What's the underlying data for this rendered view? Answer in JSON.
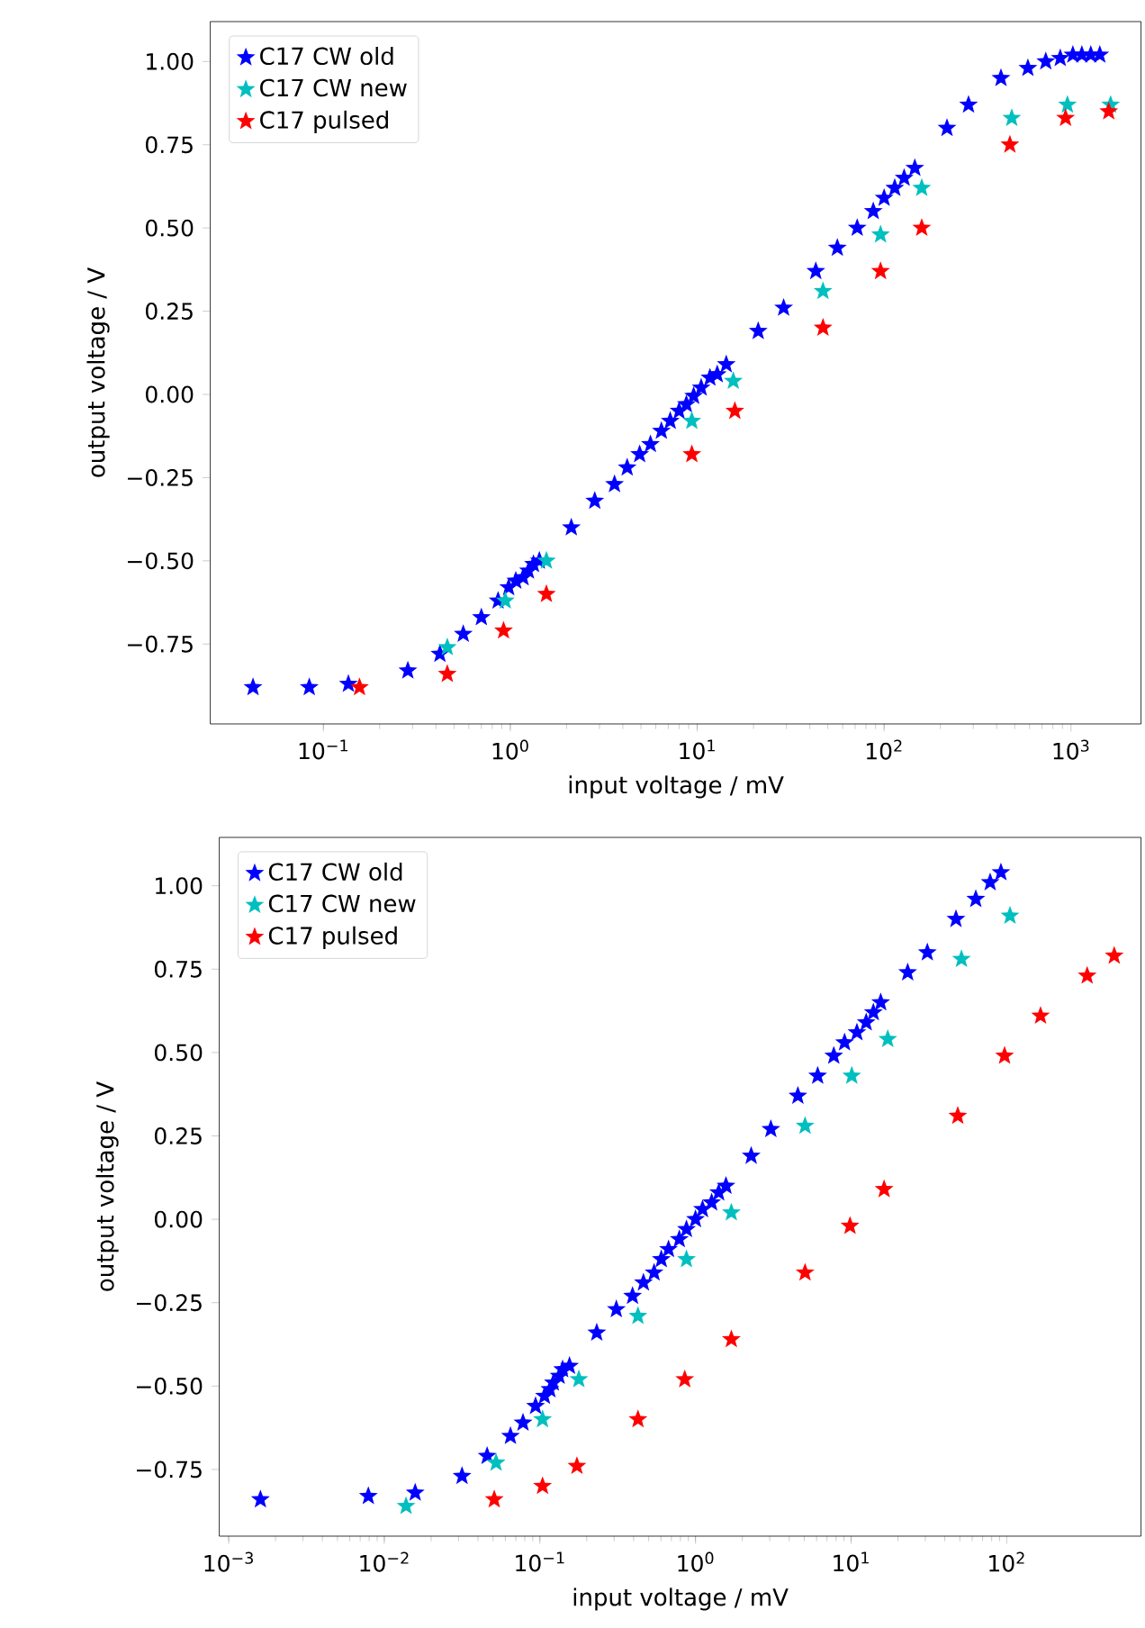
{
  "chart_data": [
    {
      "type": "scatter",
      "xlabel": "input voltage / mV",
      "ylabel": "output voltage / V",
      "log": "x",
      "marker": "star",
      "legend": "top left",
      "grid": false,
      "xlim": [
        0.0248,
        2370
      ],
      "ylim": [
        -0.99,
        1.12
      ],
      "xticks": [
        {
          "value": 0.1,
          "label": "10$^{−1}$"
        },
        {
          "value": 1,
          "label": "10$^{0}$"
        },
        {
          "value": 10,
          "label": "10$^{1}$"
        },
        {
          "value": 100,
          "label": "10$^{2}$"
        },
        {
          "value": 1000,
          "label": "10$^{3}$"
        }
      ],
      "yticks": [
        {
          "value": -0.75,
          "label": "−0.75"
        },
        {
          "value": -0.5,
          "label": "−0.50"
        },
        {
          "value": -0.25,
          "label": "−0.25"
        },
        {
          "value": 0,
          "label": "0.00"
        },
        {
          "value": 0.25,
          "label": "0.25"
        },
        {
          "value": 0.5,
          "label": "0.50"
        },
        {
          "value": 0.75,
          "label": "0.75"
        },
        {
          "value": 1,
          "label": "1.00"
        }
      ],
      "series": [
        {
          "name": "C17 CW old",
          "color": "#0000ff",
          "x": [
            0.042,
            0.084,
            0.136,
            0.283,
            0.42,
            0.56,
            0.7,
            0.86,
            0.98,
            1.07,
            1.17,
            1.25,
            1.33,
            1.43,
            2.12,
            2.83,
            3.61,
            4.22,
            4.92,
            5.62,
            6.43,
            7.17,
            8.0,
            8.75,
            9.57,
            10.5,
            11.7,
            12.8,
            14.3,
            21.2,
            29.0,
            43.1,
            56.2,
            71.8,
            87.5,
            100,
            114,
            128,
            146,
            217,
            283,
            422,
            588,
            733,
            876,
            1023,
            1143,
            1276,
            1426
          ],
          "values": [
            -0.88,
            -0.88,
            -0.87,
            -0.83,
            -0.78,
            -0.72,
            -0.67,
            -0.62,
            -0.58,
            -0.56,
            -0.55,
            -0.53,
            -0.51,
            -0.5,
            -0.4,
            -0.32,
            -0.27,
            -0.22,
            -0.18,
            -0.15,
            -0.11,
            -0.08,
            -0.05,
            -0.03,
            -0.005,
            0.02,
            0.05,
            0.06,
            0.09,
            0.19,
            0.26,
            0.37,
            0.44,
            0.5,
            0.55,
            0.59,
            0.62,
            0.65,
            0.68,
            0.8,
            0.87,
            0.95,
            0.98,
            1.0,
            1.01,
            1.02,
            1.02,
            1.02,
            1.02
          ]
        },
        {
          "name": "C17 CW new",
          "color": "#00bfbf",
          "x": [
            0.46,
            0.94,
            1.56,
            9.36,
            15.6,
            47.1,
            95.7,
            159,
            482,
            957,
            1629
          ],
          "values": [
            -0.76,
            -0.62,
            -0.5,
            -0.08,
            0.04,
            0.31,
            0.48,
            0.62,
            0.83,
            0.87,
            0.87
          ]
        },
        {
          "name": "C17 pulsed",
          "color": "#ff0000",
          "x": [
            0.156,
            0.46,
            0.92,
            1.56,
            9.36,
            15.9,
            47.1,
            95.7,
            159,
            471,
            935,
            1592
          ],
          "values": [
            -0.88,
            -0.84,
            -0.71,
            -0.6,
            -0.18,
            -0.05,
            0.2,
            0.37,
            0.5,
            0.75,
            0.83,
            0.85
          ]
        }
      ]
    },
    {
      "type": "scatter",
      "xlabel": "input voltage / mV",
      "ylabel": "output voltage / V",
      "log": "x",
      "marker": "star",
      "legend": "top left",
      "grid": false,
      "xlim": [
        0.00087,
        730
      ],
      "ylim": [
        -0.95,
        1.145
      ],
      "xticks": [
        {
          "value": 0.001,
          "label": "10$^{−3}$"
        },
        {
          "value": 0.01,
          "label": "10$^{−2}$"
        },
        {
          "value": 0.1,
          "label": "10$^{−1}$"
        },
        {
          "value": 1,
          "label": "10$^{0}$"
        },
        {
          "value": 10,
          "label": "10$^{1}$"
        },
        {
          "value": 100,
          "label": "10$^{2}$"
        }
      ],
      "yticks": [
        {
          "value": -0.75,
          "label": "−0.75"
        },
        {
          "value": -0.5,
          "label": "−0.50"
        },
        {
          "value": -0.25,
          "label": "−0.25"
        },
        {
          "value": 0,
          "label": "0.00"
        },
        {
          "value": 0.25,
          "label": "0.25"
        },
        {
          "value": 0.5,
          "label": "0.50"
        },
        {
          "value": 0.75,
          "label": "0.75"
        },
        {
          "value": 1,
          "label": "1.00"
        }
      ],
      "series": [
        {
          "name": "C17 CW old",
          "color": "#0000ff",
          "x": [
            0.0016,
            0.0079,
            0.0158,
            0.0316,
            0.0458,
            0.0647,
            0.0779,
            0.0938,
            0.107,
            0.116,
            0.122,
            0.133,
            0.14,
            0.155,
            0.232,
            0.31,
            0.394,
            0.463,
            0.542,
            0.603,
            0.671,
            0.787,
            0.875,
            1.0,
            1.11,
            1.27,
            1.41,
            1.57,
            2.28,
            3.05,
            4.55,
            6.1,
            7.74,
            9.08,
            10.9,
            12.5,
            13.9,
            15.5,
            23.1,
            30.9,
            47.2,
            63.3,
            78.3,
            91.8
          ],
          "values": [
            -0.84,
            -0.83,
            -0.82,
            -0.77,
            -0.71,
            -0.65,
            -0.61,
            -0.56,
            -0.53,
            -0.51,
            -0.49,
            -0.47,
            -0.45,
            -0.44,
            -0.34,
            -0.27,
            -0.23,
            -0.19,
            -0.16,
            -0.12,
            -0.09,
            -0.06,
            -0.03,
            0.0,
            0.03,
            0.05,
            0.08,
            0.1,
            0.19,
            0.27,
            0.37,
            0.43,
            0.49,
            0.53,
            0.56,
            0.59,
            0.62,
            0.65,
            0.74,
            0.8,
            0.9,
            0.96,
            1.01,
            1.04
          ]
        },
        {
          "name": "C17 CW new",
          "color": "#00bfbf",
          "x": [
            0.0138,
            0.0523,
            0.104,
            0.178,
            0.427,
            0.875,
            1.7,
            5.06,
            10.1,
            17.2,
            51.2,
            105
          ],
          "values": [
            -0.86,
            -0.73,
            -0.6,
            -0.48,
            -0.29,
            -0.12,
            0.02,
            0.28,
            0.43,
            0.54,
            0.78,
            0.91
          ]
        },
        {
          "name": "C17 pulsed",
          "color": "#ff0000",
          "x": [
            0.0509,
            0.104,
            0.173,
            0.427,
            0.853,
            1.7,
            5.06,
            9.84,
            16.3,
            48.5,
            96.9,
            165,
            329,
            491
          ],
          "values": [
            -0.84,
            -0.8,
            -0.74,
            -0.6,
            -0.48,
            -0.36,
            -0.16,
            -0.02,
            0.09,
            0.31,
            0.49,
            0.61,
            0.73,
            0.79
          ]
        }
      ]
    }
  ]
}
